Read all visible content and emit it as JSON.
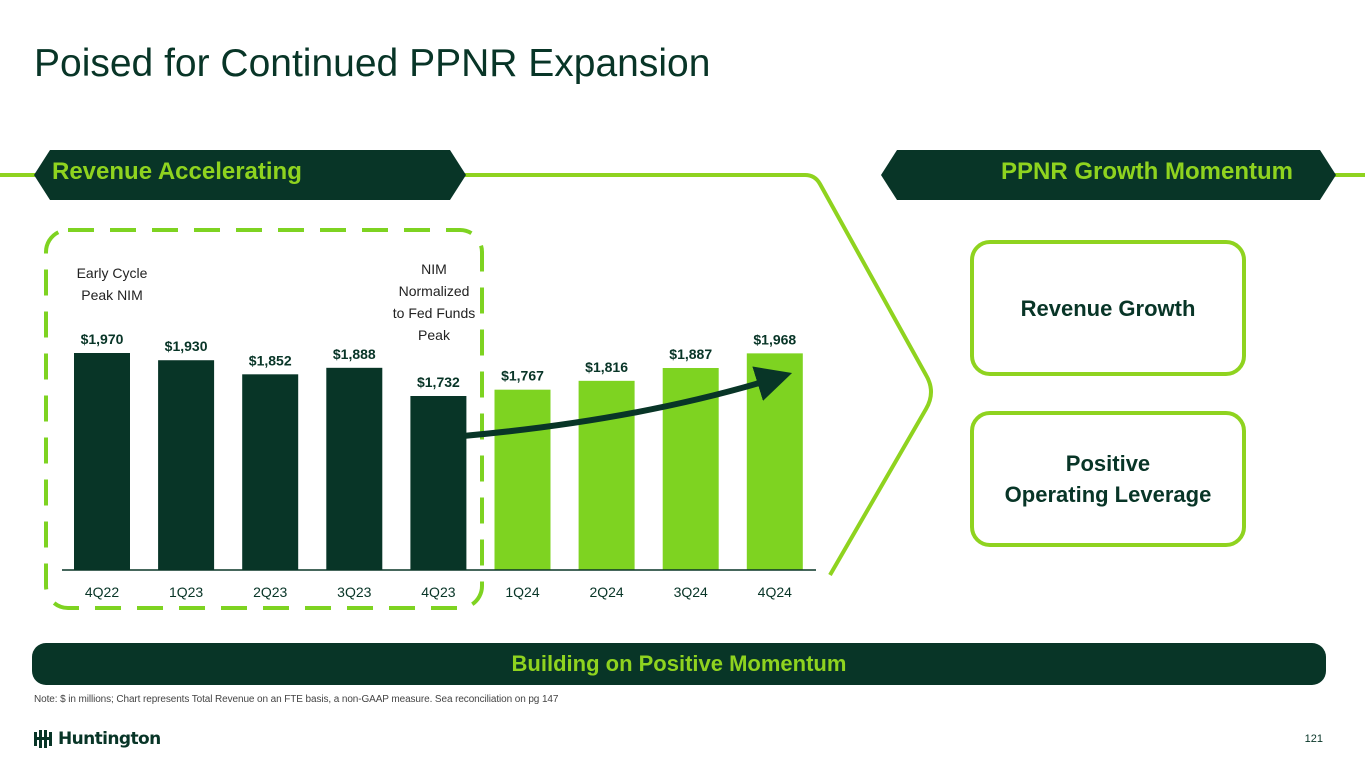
{
  "page": {
    "title": "Poised for Continued PPNR Expansion",
    "left_tag": "Revenue Accelerating",
    "right_tag": "PPNR Growth Momentum",
    "card_1": "Revenue Growth",
    "card_2": "Positive\nOperating Leverage",
    "banner": "Building on Positive Momentum",
    "note": "Note: $ in millions; Chart represents Total Revenue on an FTE basis, a non-GAAP measure. Sea reconciliation on pg 147",
    "logo_text": "Huntington",
    "page_number": "121"
  },
  "colors": {
    "dark_green": "#083527",
    "lime_green": "#7ed321",
    "accent_green": "#8fd31f"
  },
  "chart_data": {
    "type": "bar",
    "title": "",
    "xlabel": "",
    "ylabel": "",
    "categories": [
      "4Q22",
      "1Q23",
      "2Q23",
      "3Q23",
      "4Q23",
      "1Q24",
      "2Q24",
      "3Q24",
      "4Q24"
    ],
    "values": [
      1970,
      1930,
      1852,
      1888,
      1732,
      1767,
      1816,
      1887,
      1968
    ],
    "data_labels": [
      "$1,970",
      "$1,930",
      "$1,852",
      "$1,888",
      "$1,732",
      "$1,767",
      "$1,816",
      "$1,887",
      "$1,968"
    ],
    "bar_colors": [
      "#083527",
      "#083527",
      "#083527",
      "#083527",
      "#083527",
      "#7ed321",
      "#7ed321",
      "#7ed321",
      "#7ed321"
    ],
    "annotations": [
      "Early Cycle\nPeak NIM",
      "NIM\nNormalized\nto Fed Funds\nPeak"
    ],
    "grid": false,
    "legend": "none"
  }
}
